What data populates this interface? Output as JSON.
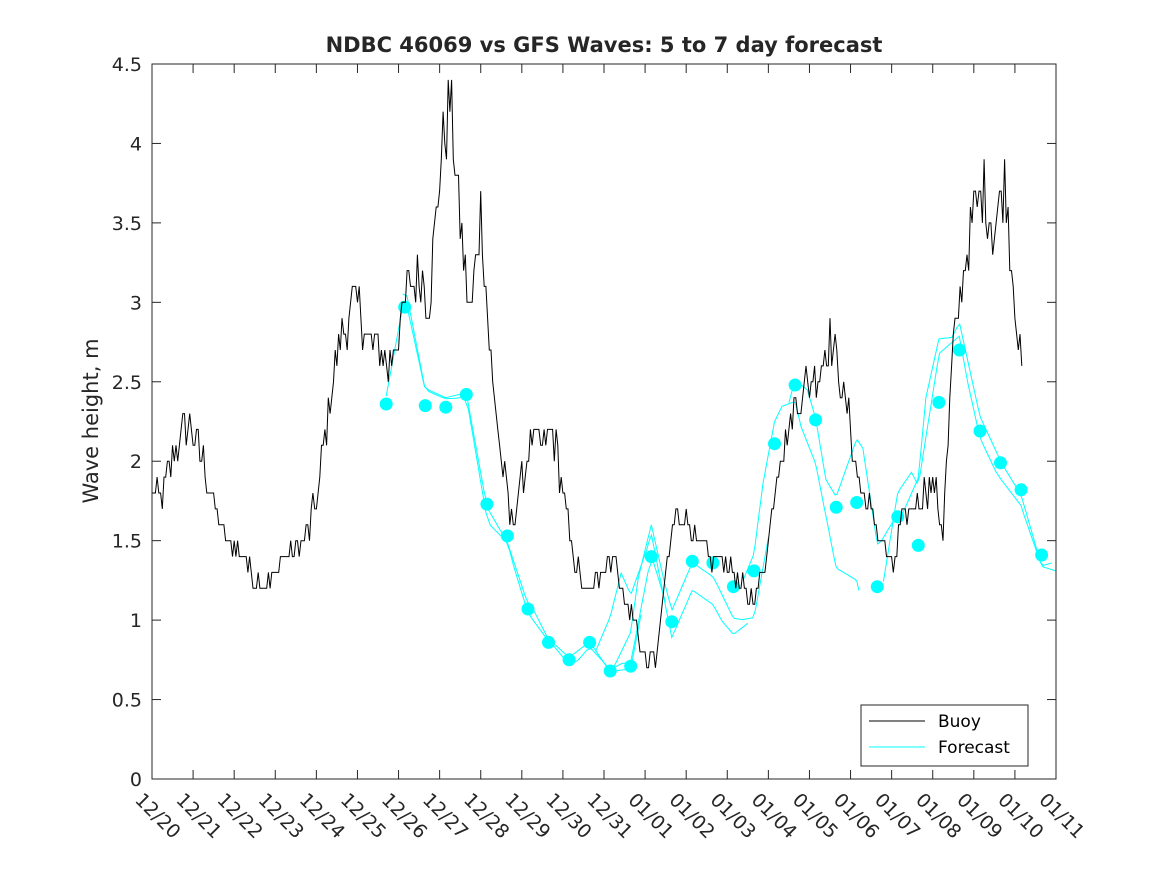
{
  "chart_data": {
    "type": "line",
    "title": "NDBC 46069 vs GFS Waves: 5 to 7 day forecast",
    "xlabel": "",
    "ylabel": "Wave height, m",
    "xlim": [
      0,
      22
    ],
    "ylim": [
      0,
      4.5
    ],
    "x_tick_values": [
      0,
      1,
      2,
      3,
      4,
      5,
      6,
      7,
      8,
      9,
      10,
      11,
      12,
      13,
      14,
      15,
      16,
      17,
      18,
      19,
      20,
      21,
      22
    ],
    "x_tick_labels": [
      "12/20",
      "12/21",
      "12/22",
      "12/23",
      "12/24",
      "12/25",
      "12/26",
      "12/27",
      "12/28",
      "12/29",
      "12/30",
      "12/31",
      "01/01",
      "01/02",
      "01/03",
      "01/04",
      "01/05",
      "01/06",
      "01/07",
      "01/08",
      "01/09",
      "01/10",
      "01/11"
    ],
    "y_tick_values": [
      0,
      0.5,
      1,
      1.5,
      2,
      2.5,
      3,
      3.5,
      4,
      4.5
    ],
    "y_tick_labels": [
      "0",
      "0.5",
      "1",
      "1.5",
      "2",
      "2.5",
      "3",
      "3.5",
      "4",
      "4.5"
    ],
    "grid": false,
    "legend_position": "bottom-right",
    "colors": {
      "buoy": "#000000",
      "forecast": "#00ffff",
      "axis": "#262626"
    },
    "series": [
      {
        "name": "Buoy",
        "x": [
          0,
          0.25,
          0.5,
          0.75,
          1,
          1.25,
          1.5,
          1.75,
          2,
          2.25,
          2.5,
          2.75,
          3,
          3.25,
          3.5,
          3.75,
          4,
          4.25,
          4.5,
          4.75,
          5,
          5.25,
          5.5,
          5.75,
          6,
          6.25,
          6.5,
          6.75,
          7,
          7.25,
          7.5,
          7.75,
          8,
          8.25,
          8.5,
          8.75,
          9,
          9.25,
          9.5,
          9.75,
          10,
          10.25,
          10.5,
          10.75,
          11,
          11.25,
          11.5,
          11.75,
          12,
          12.25,
          12.5,
          12.75,
          13,
          13.25,
          13.5,
          13.75,
          14,
          14.25,
          14.5,
          14.75,
          15,
          15.25,
          15.5,
          15.75,
          16,
          16.25,
          16.5,
          16.75,
          17,
          17.25,
          17.5,
          17.75,
          18,
          18.25,
          18.5,
          18.75,
          19,
          19.25,
          19.5,
          19.75,
          20,
          20.25,
          20.5,
          20.75,
          21,
          21.2
        ],
        "values": [
          1.8,
          1.8,
          2.0,
          2.2,
          2.2,
          2.0,
          1.7,
          1.5,
          1.45,
          1.4,
          1.25,
          1.2,
          1.3,
          1.4,
          1.45,
          1.5,
          1.75,
          2.2,
          2.7,
          2.9,
          3.0,
          2.8,
          2.7,
          2.6,
          2.8,
          3.1,
          3.2,
          3.0,
          3.8,
          4.3,
          3.5,
          2.9,
          3.6,
          2.6,
          2.0,
          1.6,
          1.9,
          2.1,
          2.1,
          2.2,
          1.8,
          1.4,
          1.2,
          1.2,
          1.35,
          1.4,
          1.1,
          1.0,
          0.75,
          0.75,
          1.25,
          1.7,
          1.65,
          1.45,
          1.4,
          1.4,
          1.35,
          1.25,
          1.15,
          1.2,
          1.5,
          2.0,
          2.2,
          2.4,
          2.5,
          2.6,
          2.8,
          2.5,
          2.2,
          1.8,
          1.7,
          1.5,
          1.3,
          1.6,
          1.7,
          1.8,
          1.85,
          1.6,
          2.7,
          3.2,
          3.6,
          3.7,
          3.4,
          3.8,
          3.0,
          2.5
        ]
      },
      {
        "name": "Forecast",
        "x": [
          5.7,
          6.15,
          6.65,
          7.15,
          7.65,
          8.15,
          8.65,
          9.15,
          9.65,
          10.15,
          10.65,
          11.15,
          11.65,
          12.15,
          12.65,
          13.15,
          13.65,
          14.15,
          14.65,
          15.15,
          15.65,
          16.15,
          16.65,
          17.15,
          17.65,
          18.15,
          18.65,
          19.15,
          19.65,
          20.15,
          20.65,
          21.15,
          21.65
        ],
        "values": [
          2.36,
          2.97,
          2.35,
          2.34,
          2.42,
          1.73,
          1.53,
          1.07,
          0.86,
          0.75,
          0.86,
          0.68,
          0.71,
          1.4,
          0.99,
          1.37,
          1.36,
          1.21,
          1.31,
          2.11,
          2.48,
          2.26,
          1.71,
          1.74,
          1.21,
          1.65,
          1.47,
          2.37,
          2.7,
          2.19,
          1.99,
          1.82,
          1.41
        ]
      }
    ]
  }
}
